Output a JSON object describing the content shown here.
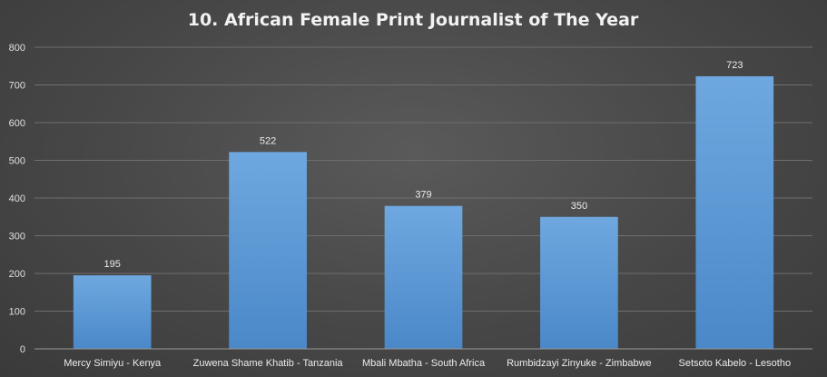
{
  "chart_data": {
    "type": "bar",
    "title": "10. African Female Print Journalist of The Year",
    "categories": [
      "Mercy Simiyu - Kenya",
      "Zuwena Shame Khatib - Tanzania",
      "Mbali Mbatha - South Africa",
      "Rumbidzayi Zinyuke - Zimbabwe",
      "Setsoto Kabelo - Lesotho"
    ],
    "values": [
      195,
      522,
      379,
      350,
      723
    ],
    "data_labels": [
      "195",
      "522",
      "379",
      "350",
      "723"
    ],
    "yticks": [
      "0",
      "100",
      "200",
      "300",
      "400",
      "500",
      "600",
      "700",
      "800"
    ],
    "ylim": [
      0,
      800
    ],
    "xlabel": "",
    "ylabel": "",
    "grid": true,
    "bar_color": "#5b9bd5",
    "background": "#474747"
  }
}
